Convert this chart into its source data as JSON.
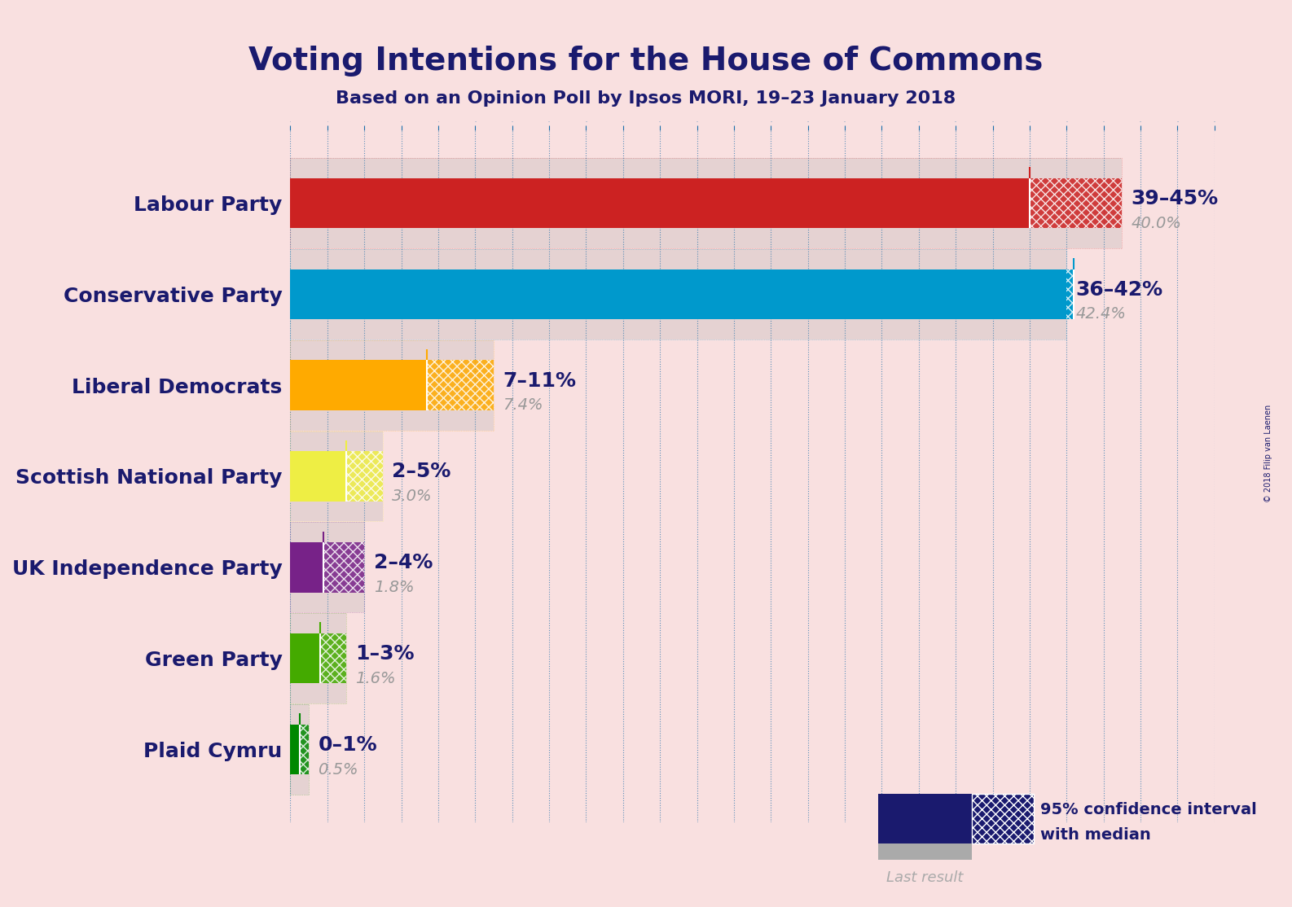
{
  "title": "Voting Intentions for the House of Commons",
  "subtitle": "Based on an Opinion Poll by Ipsos MORI, 19–23 January 2018",
  "copyright": "© 2018 Filip van Laenen",
  "background_color": "#f9e0e0",
  "title_color": "#1a1a6e",
  "subtitle_color": "#1a1a6e",
  "parties": [
    {
      "name": "Labour Party",
      "ci_low": 39,
      "ci_high": 45,
      "median": 40.0,
      "last_result": 40.0,
      "color": "#cc2222",
      "label_range": "39–45%",
      "label_median": "40.0%"
    },
    {
      "name": "Conservative Party",
      "ci_low": 36,
      "ci_high": 42,
      "median": 42.4,
      "last_result": 42.4,
      "color": "#0099cc",
      "label_range": "36–42%",
      "label_median": "42.4%"
    },
    {
      "name": "Liberal Democrats",
      "ci_low": 7,
      "ci_high": 11,
      "median": 7.4,
      "last_result": 7.4,
      "color": "#ffaa00",
      "label_range": "7–11%",
      "label_median": "7.4%"
    },
    {
      "name": "Scottish National Party",
      "ci_low": 2,
      "ci_high": 5,
      "median": 3.0,
      "last_result": 3.0,
      "color": "#eeee44",
      "label_range": "2–5%",
      "label_median": "3.0%"
    },
    {
      "name": "UK Independence Party",
      "ci_low": 2,
      "ci_high": 4,
      "median": 1.8,
      "last_result": 1.8,
      "color": "#772288",
      "label_range": "2–4%",
      "label_median": "1.8%"
    },
    {
      "name": "Green Party",
      "ci_low": 1,
      "ci_high": 3,
      "median": 1.6,
      "last_result": 1.6,
      "color": "#44aa00",
      "label_range": "1–3%",
      "label_median": "1.6%"
    },
    {
      "name": "Plaid Cymru",
      "ci_low": 0,
      "ci_high": 1,
      "median": 0.5,
      "last_result": 0.5,
      "color": "#008800",
      "label_range": "0–1%",
      "label_median": "0.5%"
    }
  ],
  "xlim": [
    0,
    50
  ],
  "bar_height": 0.55,
  "label_color_range": "#1a1a6e",
  "label_color_median": "#999999",
  "axis_color": "#1a1a6e",
  "grid_color": "#1a6eaa",
  "last_result_color": "#aaaaaa"
}
